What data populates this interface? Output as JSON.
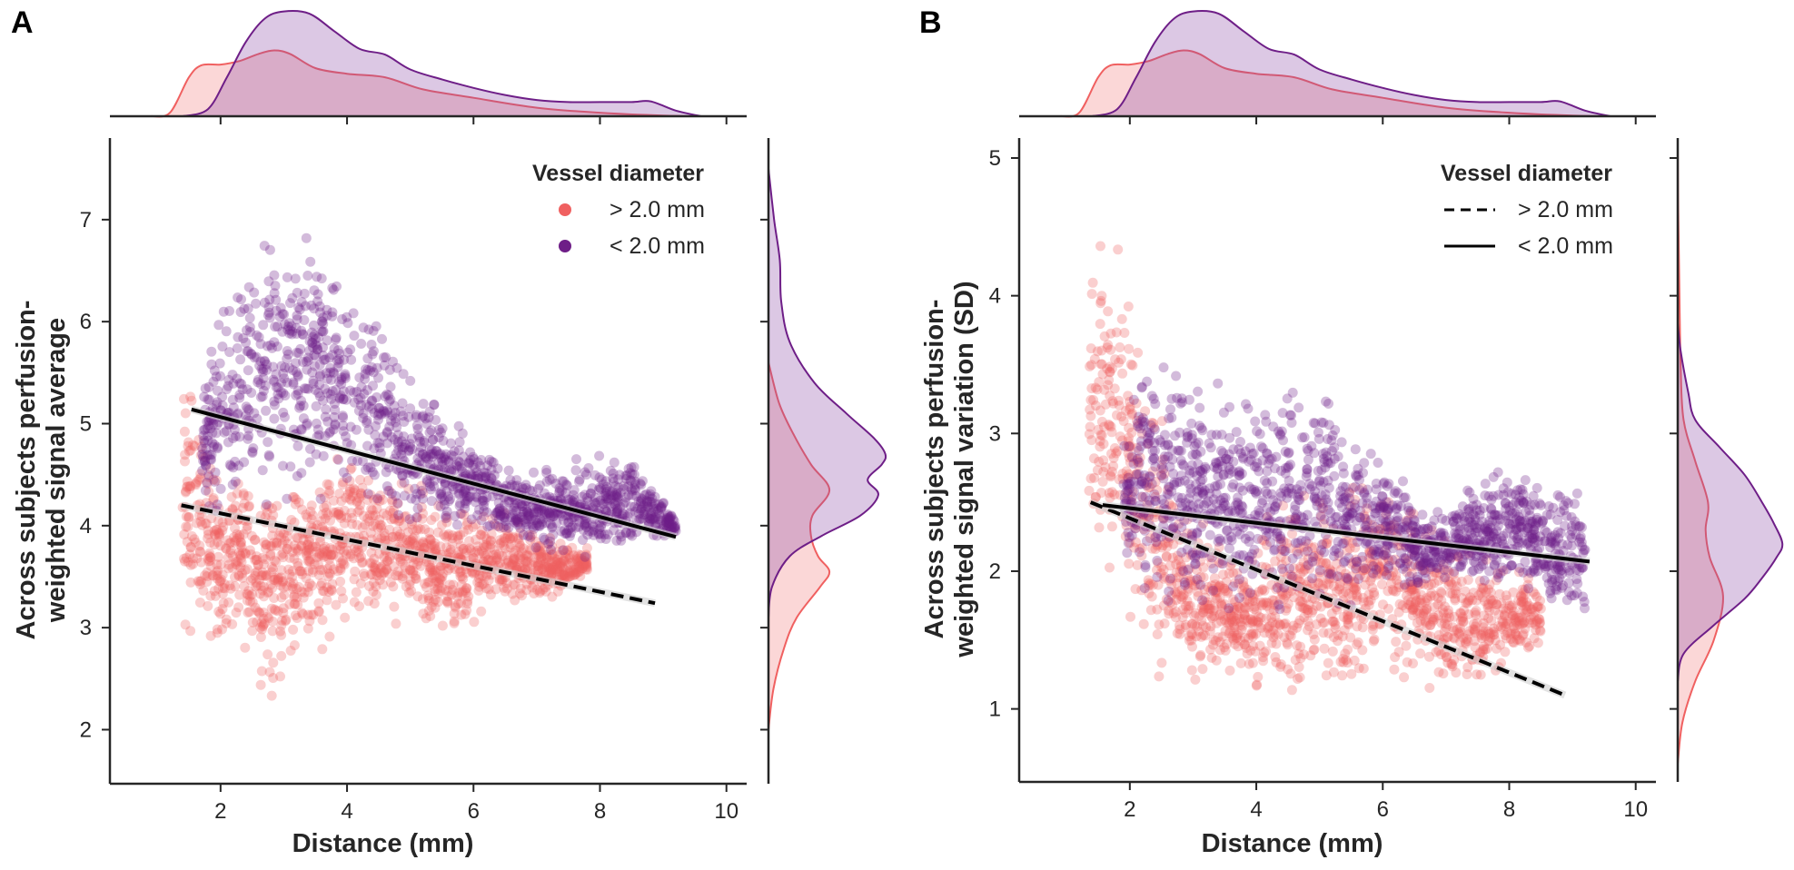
{
  "chart_data": [
    {
      "panel": "A",
      "type": "scatter",
      "title": "",
      "xlabel": "Distance (mm)",
      "ylabel_lines": [
        "Across subjects perfusion-",
        "weighted signal average"
      ],
      "xlim": [
        0.25,
        10.32
      ],
      "ylim": [
        1.47,
        7.8
      ],
      "xticks": [
        2,
        4,
        6,
        8,
        10
      ],
      "yticks": [
        2,
        3,
        4,
        5,
        6,
        7
      ],
      "grid": false,
      "legend": {
        "title": "Vessel diameter",
        "placement": "top-right",
        "marker": "dot",
        "entries": [
          {
            "label": "> 2.0 mm",
            "series": "large"
          },
          {
            "label": "< 2.0 mm",
            "series": "small"
          }
        ]
      },
      "series": [
        {
          "name": "> 2.0 mm",
          "key": "large",
          "color": "#F06060",
          "point_alpha": 0.3,
          "envelope": {
            "x": [
              1.4,
              1.6,
              1.8,
              2.0,
              2.3,
              2.6,
              2.9,
              3.2,
              3.6,
              4.0,
              4.5,
              5.0,
              5.5,
              6.0,
              6.5,
              7.0,
              7.5,
              7.8
            ],
            "y_low": [
              2.5,
              2.3,
              2.6,
              2.4,
              2.7,
              2.2,
              2.1,
              2.5,
              2.7,
              2.9,
              3.0,
              2.9,
              2.8,
              2.95,
              3.1,
              3.2,
              3.3,
              3.5
            ],
            "y_high": [
              6.2,
              5.8,
              5.2,
              4.8,
              4.7,
              4.7,
              4.6,
              4.6,
              4.8,
              4.9,
              4.8,
              4.6,
              4.4,
              4.3,
              4.2,
              4.0,
              3.9,
              3.8
            ]
          },
          "regression": {
            "x": [
              1.38,
              8.87
            ],
            "y": [
              4.2,
              3.24
            ],
            "style": "dashed"
          }
        },
        {
          "name": "< 2.0 mm",
          "key": "small",
          "color": "#6E1E87",
          "point_alpha": 0.3,
          "envelope": {
            "x": [
              1.7,
              2.0,
              2.3,
              2.7,
              3.1,
              3.5,
              3.9,
              4.3,
              4.7,
              5.1,
              5.5,
              6.0,
              6.5,
              7.0,
              7.5,
              8.0,
              8.5,
              9.0,
              9.2
            ],
            "y_low": [
              4.1,
              3.9,
              3.9,
              4.0,
              4.1,
              4.0,
              4.1,
              4.0,
              3.9,
              3.9,
              3.9,
              3.9,
              3.8,
              3.7,
              3.6,
              3.6,
              3.7,
              3.8,
              3.9
            ],
            "y_high": [
              5.3,
              6.5,
              6.8,
              7.0,
              7.1,
              7.2,
              6.6,
              6.5,
              6.0,
              5.5,
              5.2,
              4.9,
              4.65,
              4.6,
              4.7,
              4.75,
              4.7,
              4.4,
              4.1
            ]
          },
          "regression": {
            "x": [
              1.54,
              9.2
            ],
            "y": [
              5.14,
              3.89
            ],
            "style": "solid"
          }
        }
      ],
      "marginal_x": {
        "axis": "Distance (mm)",
        "series": [
          {
            "key": "large",
            "x": [
              0.9,
              1.2,
              1.5,
              1.7,
              2.0,
              2.3,
              2.6,
              2.85,
              3.1,
              3.5,
              4.0,
              4.6,
              5.2,
              6.0,
              7.0,
              8.0,
              9.0,
              9.6
            ],
            "density": [
              0.0,
              0.05,
              0.55,
              0.72,
              0.73,
              0.78,
              0.88,
              0.93,
              0.88,
              0.68,
              0.6,
              0.55,
              0.38,
              0.26,
              0.12,
              0.05,
              0.01,
              0.0
            ]
          },
          {
            "key": "small",
            "x": [
              1.4,
              1.8,
              2.1,
              2.4,
              2.7,
              3.0,
              3.4,
              3.8,
              4.2,
              4.6,
              5.0,
              5.5,
              6.0,
              6.5,
              7.0,
              7.5,
              8.0,
              8.5,
              8.8,
              9.2,
              9.6
            ],
            "density": [
              0.0,
              0.1,
              0.55,
              1.05,
              1.38,
              1.48,
              1.45,
              1.2,
              0.95,
              0.87,
              0.66,
              0.52,
              0.4,
              0.3,
              0.23,
              0.2,
              0.2,
              0.2,
              0.21,
              0.08,
              0.0
            ]
          }
        ]
      },
      "marginal_y": {
        "axis": "signal average",
        "series": [
          {
            "key": "large",
            "y": [
              2.0,
              2.4,
              2.8,
              3.1,
              3.4,
              3.55,
              3.7,
              3.9,
              4.1,
              4.35,
              4.6,
              4.9,
              5.2,
              5.6
            ],
            "density": [
              0.0,
              0.07,
              0.22,
              0.4,
              0.73,
              0.86,
              0.7,
              0.6,
              0.62,
              0.86,
              0.6,
              0.35,
              0.15,
              0.0
            ]
          },
          {
            "key": "small",
            "y": [
              3.1,
              3.4,
              3.7,
              3.9,
              4.1,
              4.3,
              4.45,
              4.6,
              4.7,
              4.85,
              5.1,
              5.4,
              5.8,
              6.2,
              6.6,
              7.0,
              7.5
            ],
            "density": [
              0.0,
              0.05,
              0.3,
              0.75,
              1.3,
              1.55,
              1.4,
              1.6,
              1.65,
              1.5,
              1.1,
              0.65,
              0.3,
              0.18,
              0.16,
              0.08,
              0.0
            ]
          }
        ]
      }
    },
    {
      "panel": "B",
      "type": "scatter",
      "title": "",
      "xlabel": "Distance (mm)",
      "ylabel_lines": [
        "Across subjects perfusion-",
        "weighted signal variation (SD)"
      ],
      "xlim": [
        0.25,
        10.32
      ],
      "ylim": [
        0.47,
        5.145
      ],
      "xticks": [
        2,
        4,
        6,
        8,
        10
      ],
      "yticks": [
        1,
        2,
        3,
        4,
        5
      ],
      "grid": false,
      "legend": {
        "title": "Vessel diameter",
        "placement": "top-right",
        "marker": "line",
        "entries": [
          {
            "label": "> 2.0 mm",
            "series": "large",
            "style": "dashed"
          },
          {
            "label": "< 2.0 mm",
            "series": "small",
            "style": "solid"
          }
        ]
      },
      "series": [
        {
          "name": "> 2.0 mm",
          "key": "large",
          "color": "#F06060",
          "point_alpha": 0.3,
          "envelope": {
            "x": [
              1.35,
              1.6,
              1.85,
              2.1,
              2.4,
              2.7,
              3.0,
              3.4,
              3.8,
              4.2,
              4.6,
              5.0,
              5.5,
              6.0,
              6.5,
              7.0,
              7.5,
              8.0,
              8.5
            ],
            "y_low": [
              1.9,
              1.7,
              1.5,
              1.2,
              1.1,
              1.15,
              1.05,
              1.15,
              1.1,
              1.05,
              1.0,
              1.1,
              1.05,
              1.15,
              1.0,
              0.95,
              1.1,
              1.2,
              1.35
            ],
            "y_high": [
              4.3,
              4.7,
              4.5,
              3.9,
              3.5,
              3.0,
              2.5,
              2.3,
              2.1,
              2.5,
              2.7,
              2.7,
              2.75,
              2.85,
              2.6,
              2.4,
              2.2,
              2.1,
              2.0
            ]
          },
          "regression": {
            "x": [
              1.38,
              8.88
            ],
            "y": [
              2.5,
              1.1
            ],
            "style": "dashed"
          }
        },
        {
          "name": "< 2.0 mm",
          "key": "small",
          "color": "#6E1E87",
          "point_alpha": 0.3,
          "envelope": {
            "x": [
              1.9,
              2.2,
              2.6,
              3.0,
              3.4,
              3.8,
              4.2,
              4.6,
              5.0,
              5.4,
              5.8,
              6.2,
              6.6,
              7.0,
              7.4,
              7.8,
              8.2,
              8.6,
              9.0,
              9.2
            ],
            "y_low": [
              1.9,
              1.65,
              1.6,
              1.55,
              1.6,
              1.5,
              1.55,
              1.55,
              1.6,
              1.65,
              1.7,
              1.8,
              1.75,
              1.85,
              1.9,
              1.8,
              1.75,
              1.7,
              1.5,
              1.6
            ],
            "y_high": [
              3.2,
              3.7,
              3.75,
              3.6,
              3.55,
              3.5,
              3.55,
              3.65,
              3.45,
              3.2,
              3.0,
              2.85,
              2.55,
              2.55,
              2.65,
              2.8,
              2.85,
              2.6,
              2.8,
              2.5
            ]
          },
          "regression": {
            "x": [
              1.57,
              9.27
            ],
            "y": [
              2.48,
              2.07
            ],
            "style": "solid"
          }
        }
      ],
      "marginal_x": {
        "axis": "Distance (mm)",
        "series": [
          {
            "key": "large",
            "x": [
              0.9,
              1.2,
              1.5,
              1.7,
              2.0,
              2.3,
              2.6,
              2.85,
              3.1,
              3.5,
              4.0,
              4.6,
              5.2,
              6.0,
              7.0,
              8.0,
              9.0,
              9.6
            ],
            "density": [
              0.0,
              0.05,
              0.55,
              0.72,
              0.73,
              0.78,
              0.88,
              0.93,
              0.88,
              0.68,
              0.6,
              0.55,
              0.38,
              0.26,
              0.12,
              0.05,
              0.01,
              0.0
            ]
          },
          {
            "key": "small",
            "x": [
              1.4,
              1.8,
              2.1,
              2.4,
              2.7,
              3.0,
              3.4,
              3.8,
              4.2,
              4.6,
              5.0,
              5.5,
              6.0,
              6.5,
              7.0,
              7.5,
              8.0,
              8.5,
              8.8,
              9.2,
              9.6
            ],
            "density": [
              0.0,
              0.1,
              0.55,
              1.05,
              1.38,
              1.48,
              1.45,
              1.2,
              0.95,
              0.87,
              0.66,
              0.52,
              0.4,
              0.3,
              0.23,
              0.2,
              0.2,
              0.2,
              0.21,
              0.08,
              0.0
            ]
          }
        ]
      },
      "marginal_y": {
        "axis": "signal variation (SD)",
        "series": [
          {
            "key": "large",
            "y": [
              0.6,
              0.9,
              1.2,
              1.5,
              1.82,
              2.1,
              2.3,
              2.5,
              2.8,
              3.1,
              3.5,
              4.0,
              4.6,
              5.1
            ],
            "density": [
              0.0,
              0.08,
              0.3,
              0.62,
              0.78,
              0.55,
              0.48,
              0.52,
              0.3,
              0.1,
              0.05,
              0.03,
              0.01,
              0.0
            ]
          },
          {
            "key": "small",
            "y": [
              1.2,
              1.4,
              1.6,
              1.8,
              1.95,
              2.1,
              2.2,
              2.35,
              2.5,
              2.7,
              2.9,
              3.1,
              3.3,
              3.6,
              3.8
            ],
            "density": [
              0.0,
              0.1,
              0.6,
              1.15,
              1.45,
              1.7,
              1.8,
              1.65,
              1.45,
              1.15,
              0.72,
              0.3,
              0.18,
              0.05,
              0.0
            ]
          }
        ]
      }
    }
  ],
  "panels": [
    {
      "letter": "A"
    },
    {
      "letter": "B"
    }
  ],
  "colors": {
    "large": "#F06060",
    "small": "#6E1E87",
    "large_fill": "#F06060",
    "small_fill": "#8A4AA6",
    "axis": "#262626",
    "regression": "#000000"
  }
}
